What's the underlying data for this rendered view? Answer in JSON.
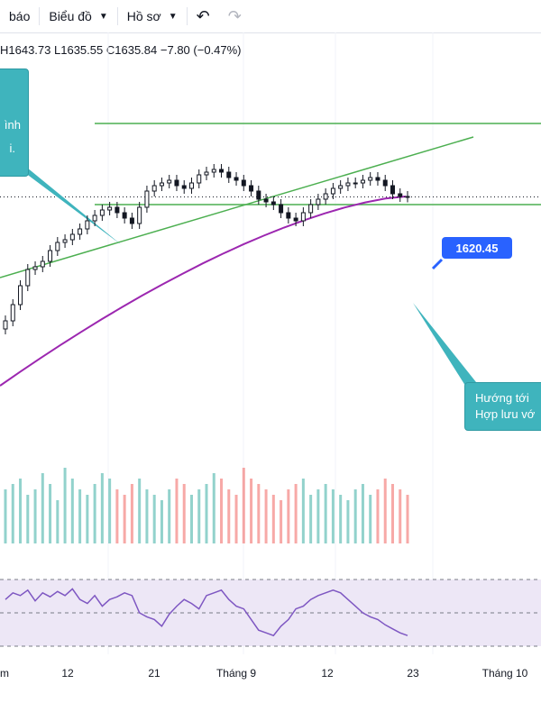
{
  "toolbar": {
    "alerts_label": "báo",
    "charts_label": "Biểu đồ",
    "profile_label": "Hồ sơ",
    "undo_icon": "undo-icon",
    "redo_icon": "redo-icon"
  },
  "legend": {
    "high": "H1643.73",
    "low": "L1635.55",
    "close": "C1635.84",
    "change": "−7.80 (−0.47%)"
  },
  "annotations": {
    "top_callout_lines": [
      "ình",
      "i."
    ],
    "bottom_callout_lines": [
      "Hướng tới",
      "Hợp lưu vớ"
    ],
    "price_label": "1620.45"
  },
  "colors": {
    "up": "#26a69a",
    "down": "#ef5350",
    "ma": "#9c27b0",
    "channel": "#4caf50",
    "callout": "#3fb4bd",
    "label": "#2962ff",
    "rsi_fill": "#ede7f6",
    "rsi_line": "#7e57c2"
  },
  "chart_data": {
    "type": "candlestick",
    "x_ticks": [
      "m",
      "12",
      "21",
      "Tháng 9",
      "12",
      "23",
      "Tháng 10"
    ],
    "price_range": [
      1560,
      1680
    ],
    "close_series": [
      1590,
      1596,
      1603,
      1609,
      1610,
      1612,
      1616,
      1619,
      1620,
      1622,
      1624,
      1627,
      1629,
      1631,
      1632,
      1630,
      1628,
      1626,
      1632,
      1638,
      1640,
      1641,
      1642,
      1640,
      1639,
      1641,
      1644,
      1645,
      1646,
      1645,
      1643,
      1642,
      1640,
      1638,
      1635,
      1634,
      1633,
      1630,
      1628,
      1627,
      1630,
      1633,
      1635,
      1637,
      1639,
      1640,
      1641,
      1641,
      1642,
      1643,
      1642,
      1640,
      1637,
      1636,
      1635.84
    ],
    "volume_series": [
      10,
      11,
      12,
      9,
      10,
      13,
      11,
      8,
      14,
      12,
      10,
      9,
      11,
      13,
      12,
      10,
      9,
      11,
      12,
      10,
      9,
      8,
      10,
      12,
      11,
      9,
      10,
      11,
      13,
      12,
      10,
      9,
      14,
      12,
      11,
      10,
      9,
      8,
      10,
      11,
      12,
      9,
      10,
      11,
      10,
      9,
      8,
      10,
      11,
      9,
      10,
      12,
      11,
      10,
      9
    ],
    "rsi_series": [
      55,
      60,
      58,
      62,
      54,
      60,
      57,
      61,
      58,
      63,
      55,
      52,
      58,
      50,
      55,
      57,
      60,
      58,
      45,
      42,
      40,
      35,
      44,
      50,
      55,
      52,
      48,
      58,
      60,
      62,
      55,
      50,
      48,
      40,
      32,
      30,
      28,
      35,
      40,
      48,
      50,
      55,
      58,
      60,
      62,
      60,
      55,
      50,
      45,
      42,
      40,
      36,
      33,
      30,
      28
    ],
    "moving_average": {
      "start": 1566,
      "end": 1636
    },
    "horizontal_levels": [
      1663,
      1633
    ],
    "trendline": {
      "start": 1606,
      "end": 1658
    },
    "target": 1620.45
  }
}
